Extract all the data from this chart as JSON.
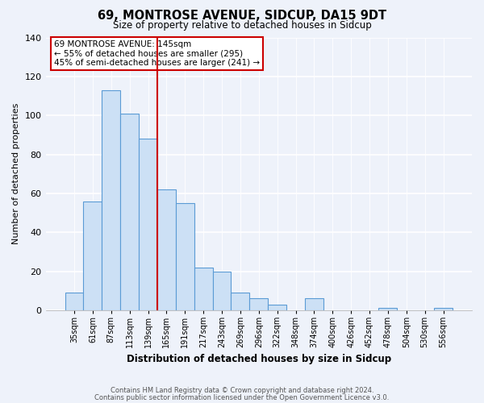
{
  "title": "69, MONTROSE AVENUE, SIDCUP, DA15 9DT",
  "subtitle": "Size of property relative to detached houses in Sidcup",
  "xlabel": "Distribution of detached houses by size in Sidcup",
  "ylabel": "Number of detached properties",
  "bar_labels": [
    "35sqm",
    "61sqm",
    "87sqm",
    "113sqm",
    "139sqm",
    "165sqm",
    "191sqm",
    "217sqm",
    "243sqm",
    "269sqm",
    "296sqm",
    "322sqm",
    "348sqm",
    "374sqm",
    "400sqm",
    "426sqm",
    "452sqm",
    "478sqm",
    "504sqm",
    "530sqm",
    "556sqm"
  ],
  "bar_values": [
    9,
    56,
    113,
    101,
    88,
    62,
    55,
    22,
    20,
    9,
    6,
    3,
    0,
    6,
    0,
    0,
    0,
    1,
    0,
    0,
    1
  ],
  "bar_color": "#cce0f5",
  "bar_edge_color": "#5b9bd5",
  "vline_x": 4.5,
  "vline_color": "#cc0000",
  "annotation_text": "69 MONTROSE AVENUE: 145sqm\n← 55% of detached houses are smaller (295)\n45% of semi-detached houses are larger (241) →",
  "annotation_box_color": "#ffffff",
  "annotation_box_edge": "#cc0000",
  "ylim": [
    0,
    140
  ],
  "yticks": [
    0,
    20,
    40,
    60,
    80,
    100,
    120,
    140
  ],
  "footer_line1": "Contains HM Land Registry data © Crown copyright and database right 2024.",
  "footer_line2": "Contains public sector information licensed under the Open Government Licence v3.0.",
  "background_color": "#eef2fa",
  "title_fontsize": 10.5,
  "subtitle_fontsize": 8.5
}
